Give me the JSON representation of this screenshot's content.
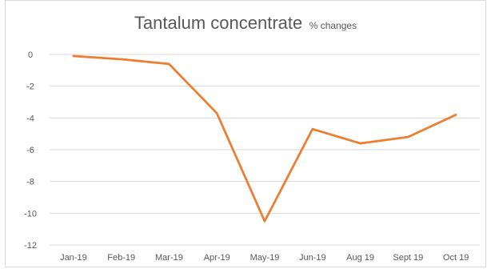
{
  "chart_data": {
    "type": "line",
    "title": "Tantalum concentrate",
    "subtitle": "% changes",
    "categories": [
      "Jan-19",
      "Feb-19",
      "Mar-19",
      "Apr-19",
      "May-19",
      "Jun-19",
      "Aug 19",
      "Sept 19",
      "Oct 19"
    ],
    "series": [
      {
        "values": [
          -0.1,
          -0.3,
          -0.6,
          -3.7,
          -10.5,
          -4.7,
          -5.6,
          -5.2,
          -3.8
        ]
      }
    ],
    "yticks": [
      "0",
      "-2",
      "-4",
      "-6",
      "-8",
      "-10",
      "-12"
    ],
    "ylim": [
      -12,
      0
    ],
    "grid": true,
    "line_color": "#ED7D31",
    "grid_color": "#d9d9d9",
    "text_color": "#595959"
  }
}
